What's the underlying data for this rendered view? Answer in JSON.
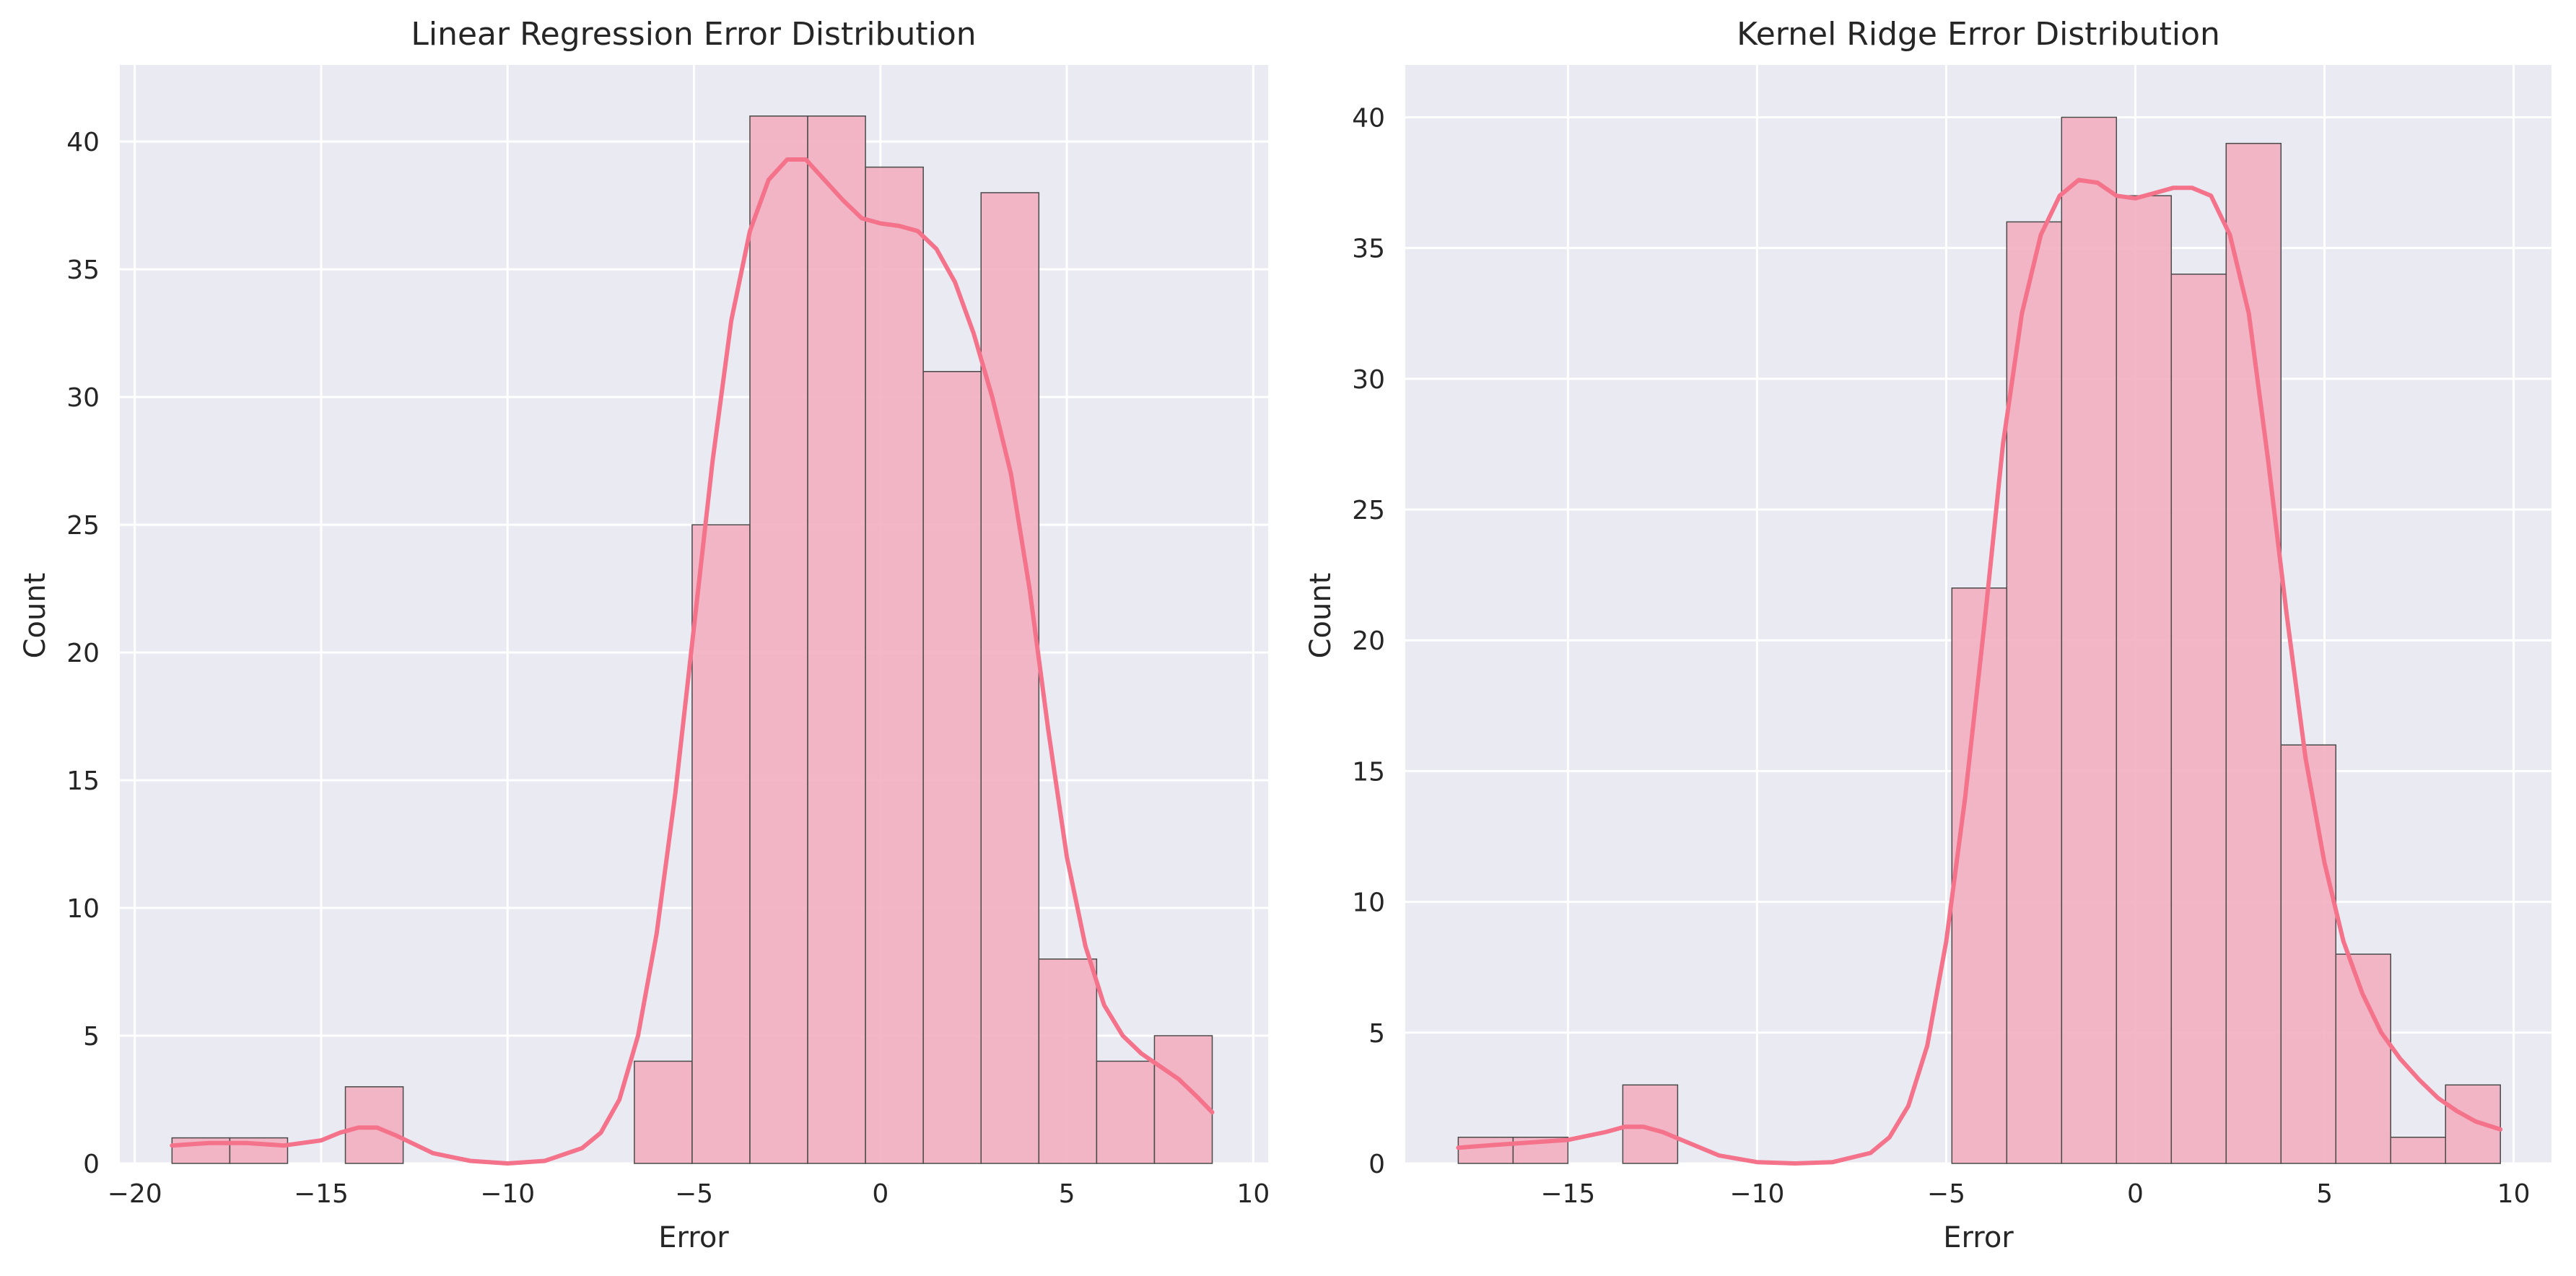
{
  "colors": {
    "axes_bg": "#EAEAF2",
    "grid": "#FFFFFF",
    "bar_fill": "#F2AFC1",
    "bar_edge": "#4A4A4A",
    "kde": "#F4728A",
    "text": "#262626"
  },
  "chart_data": [
    {
      "type": "bar",
      "title": "Linear Regression Error Distribution",
      "xlabel": "Error",
      "ylabel": "Count",
      "xlim": [
        -20.4,
        10.4
      ],
      "ylim": [
        0,
        43
      ],
      "xticks": [
        -20,
        -15,
        -10,
        -5,
        0,
        5,
        10
      ],
      "xtick_labels": [
        "−20",
        "−15",
        "−10",
        "−5",
        "0",
        "5",
        "10"
      ],
      "yticks": [
        0,
        5,
        10,
        15,
        20,
        25,
        30,
        35,
        40
      ],
      "ytick_labels": [
        "0",
        "5",
        "10",
        "15",
        "20",
        "25",
        "30",
        "35",
        "40"
      ],
      "grid": true,
      "bins": [
        {
          "x0": -19.0,
          "x1": -17.45,
          "count": 1
        },
        {
          "x0": -17.45,
          "x1": -15.9,
          "count": 1
        },
        {
          "x0": -14.35,
          "x1": -12.8,
          "count": 3
        },
        {
          "x0": -6.6,
          "x1": -5.05,
          "count": 4
        },
        {
          "x0": -5.05,
          "x1": -3.5,
          "count": 25
        },
        {
          "x0": -3.5,
          "x1": -1.95,
          "count": 41
        },
        {
          "x0": -1.95,
          "x1": -0.4,
          "count": 41
        },
        {
          "x0": -0.4,
          "x1": 1.15,
          "count": 39
        },
        {
          "x0": 1.15,
          "x1": 2.7,
          "count": 31
        },
        {
          "x0": 2.7,
          "x1": 4.25,
          "count": 38
        },
        {
          "x0": 4.25,
          "x1": 5.8,
          "count": 8
        },
        {
          "x0": 5.8,
          "x1": 7.35,
          "count": 4
        },
        {
          "x0": 7.35,
          "x1": 8.9,
          "count": 5
        }
      ],
      "kde": {
        "x": [
          -19.0,
          -18.0,
          -17.0,
          -16.0,
          -15.0,
          -14.5,
          -14.0,
          -13.5,
          -13.0,
          -12.0,
          -11.0,
          -10.0,
          -9.0,
          -8.0,
          -7.5,
          -7.0,
          -6.5,
          -6.0,
          -5.5,
          -5.0,
          -4.5,
          -4.0,
          -3.5,
          -3.0,
          -2.5,
          -2.0,
          -1.5,
          -1.0,
          -0.5,
          0.0,
          0.5,
          1.0,
          1.5,
          2.0,
          2.5,
          3.0,
          3.5,
          4.0,
          4.5,
          5.0,
          5.5,
          6.0,
          6.5,
          7.0,
          7.5,
          8.0,
          8.5,
          8.9
        ],
        "y": [
          0.7,
          0.8,
          0.8,
          0.7,
          0.9,
          1.2,
          1.4,
          1.4,
          1.1,
          0.4,
          0.1,
          0.0,
          0.1,
          0.6,
          1.2,
          2.5,
          5.0,
          9.0,
          14.5,
          21.0,
          27.5,
          33.0,
          36.5,
          38.5,
          39.3,
          39.3,
          38.5,
          37.7,
          37.0,
          36.8,
          36.7,
          36.5,
          35.8,
          34.5,
          32.5,
          30.0,
          27.0,
          22.5,
          17.0,
          12.0,
          8.5,
          6.2,
          5.0,
          4.3,
          3.8,
          3.3,
          2.6,
          2.0
        ]
      }
    },
    {
      "type": "bar",
      "title": "Kernel Ridge Error Distribution",
      "xlabel": "Error",
      "ylabel": "Count",
      "xlim": [
        -19.3,
        11.0
      ],
      "ylim": [
        0,
        42
      ],
      "xticks": [
        -15,
        -10,
        -5,
        0,
        5,
        10
      ],
      "xtick_labels": [
        "−15",
        "−10",
        "−5",
        "0",
        "5",
        "10"
      ],
      "yticks": [
        0,
        5,
        10,
        15,
        20,
        25,
        30,
        35,
        40
      ],
      "ytick_labels": [
        "0",
        "5",
        "10",
        "15",
        "20",
        "25",
        "30",
        "35",
        "40"
      ],
      "grid": true,
      "bins": [
        {
          "x0": -17.9,
          "x1": -16.45,
          "count": 1
        },
        {
          "x0": -16.45,
          "x1": -15.0,
          "count": 1
        },
        {
          "x0": -13.55,
          "x1": -12.1,
          "count": 3
        },
        {
          "x0": -4.85,
          "x1": -3.4,
          "count": 22
        },
        {
          "x0": -3.4,
          "x1": -1.95,
          "count": 36
        },
        {
          "x0": -1.95,
          "x1": -0.5,
          "count": 40
        },
        {
          "x0": -0.5,
          "x1": 0.95,
          "count": 37
        },
        {
          "x0": 0.95,
          "x1": 2.4,
          "count": 34
        },
        {
          "x0": 2.4,
          "x1": 3.85,
          "count": 39
        },
        {
          "x0": 3.85,
          "x1": 5.3,
          "count": 16
        },
        {
          "x0": 5.3,
          "x1": 6.75,
          "count": 8
        },
        {
          "x0": 6.75,
          "x1": 8.2,
          "count": 1
        },
        {
          "x0": 8.2,
          "x1": 9.65,
          "count": 3
        }
      ],
      "kde": {
        "x": [
          -17.9,
          -17.0,
          -16.0,
          -15.0,
          -14.0,
          -13.5,
          -13.0,
          -12.5,
          -12.0,
          -11.0,
          -10.0,
          -9.0,
          -8.0,
          -7.0,
          -6.5,
          -6.0,
          -5.5,
          -5.0,
          -4.5,
          -4.0,
          -3.5,
          -3.0,
          -2.5,
          -2.0,
          -1.5,
          -1.0,
          -0.5,
          0.0,
          0.5,
          1.0,
          1.5,
          2.0,
          2.5,
          3.0,
          3.5,
          4.0,
          4.5,
          5.0,
          5.5,
          6.0,
          6.5,
          7.0,
          7.5,
          8.0,
          8.5,
          9.0,
          9.65
        ],
        "y": [
          0.6,
          0.7,
          0.8,
          0.9,
          1.2,
          1.4,
          1.4,
          1.2,
          0.9,
          0.3,
          0.05,
          0.0,
          0.05,
          0.4,
          1.0,
          2.2,
          4.5,
          8.5,
          14.0,
          20.5,
          27.5,
          32.5,
          35.5,
          37.0,
          37.6,
          37.5,
          37.0,
          36.9,
          37.1,
          37.3,
          37.3,
          37.0,
          35.5,
          32.5,
          27.0,
          21.0,
          15.5,
          11.5,
          8.5,
          6.5,
          5.0,
          4.0,
          3.2,
          2.5,
          2.0,
          1.6,
          1.3
        ]
      }
    }
  ]
}
